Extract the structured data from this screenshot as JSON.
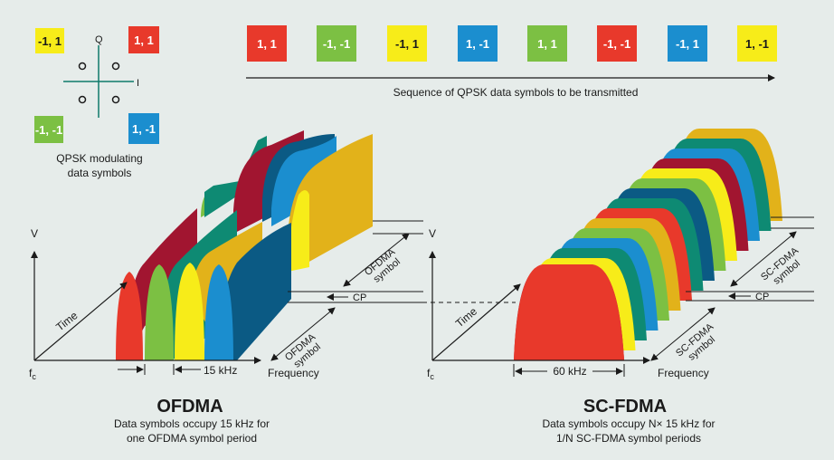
{
  "colors": {
    "background": "#e6ecea",
    "red": "#e8392b",
    "green": "#7cc043",
    "yellow": "#f7ec19",
    "blue": "#1b8ecf",
    "teal": "#0e8a73",
    "crimson": "#a11530",
    "navy": "#0b5a84",
    "gold": "#e2b21a"
  },
  "constellation": {
    "q_label": "Q",
    "i_label": "I",
    "symbols": [
      {
        "text": "-1, 1",
        "color": "yellow"
      },
      {
        "text": "1, 1",
        "color": "red"
      },
      {
        "text": "-1, -1",
        "color": "green"
      },
      {
        "text": "1, -1",
        "color": "blue"
      }
    ],
    "caption_line1": "QPSK modulating",
    "caption_line2": "data symbols"
  },
  "sequence": {
    "symbols": [
      {
        "text": "1, 1",
        "color": "red"
      },
      {
        "text": "-1, -1",
        "color": "green"
      },
      {
        "text": "-1, 1",
        "color": "yellow"
      },
      {
        "text": "1, -1",
        "color": "blue"
      },
      {
        "text": "1, 1",
        "color": "green"
      },
      {
        "text": "-1, -1",
        "color": "red"
      },
      {
        "text": "-1, 1",
        "color": "blue"
      },
      {
        "text": "1, -1",
        "color": "yellow"
      }
    ],
    "caption": "Sequence of QPSK data symbols to be transmitted"
  },
  "ofdma": {
    "v_label": "V",
    "fc_label": "f",
    "fc_sub": "c",
    "time_label": "Time",
    "frequency_label": "Frequency",
    "width_label": "15 kHz",
    "cp_label": "CP",
    "symbol_label_line1": "OFDMA",
    "symbol_label_line2": "symbol",
    "title": "OFDMA",
    "desc_line1": "Data symbols occupy 15 kHz for",
    "desc_line2": "one OFDMA symbol period"
  },
  "scfdma": {
    "v_label": "V",
    "fc_label": "f",
    "fc_sub": "c",
    "time_label": "Time",
    "frequency_label": "Frequency",
    "width_label": "60 kHz",
    "cp_label": "CP",
    "symbol_label_line1": "SC-FDMA",
    "symbol_label_line2": "symbol",
    "title": "SC-FDMA",
    "desc_line1": "Data symbols occupy N× 15 kHz for",
    "desc_line2": "1/N SC-FDMA symbol periods"
  }
}
